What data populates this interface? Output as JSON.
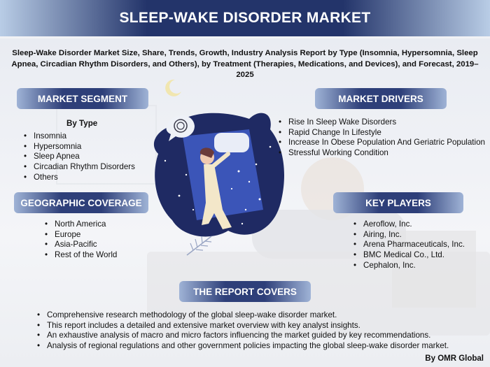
{
  "header": {
    "title": "SLEEP-WAKE DISORDER MARKET"
  },
  "subtitle": "Sleep-Wake Disorder Market Size, Share, Trends, Growth, Industry Analysis Report by Type (Insomnia, Hypersomnia, Sleep Apnea, Circadian Rhythm Disorders, and Others), by Treatment (Therapies, Medications, and Devices), and Forecast, 2019–2025",
  "market_segment": {
    "heading": "MARKET SEGMENT",
    "subheading": "By Type",
    "items": [
      "Insomnia",
      "Hypersomnia",
      "Sleep Apnea",
      "Circadian Rhythm Disorders",
      "Others"
    ]
  },
  "market_drivers": {
    "heading": "MARKET DRIVERS",
    "items": [
      "Rise In Sleep Wake Disorders",
      "Rapid Change In Lifestyle",
      "Increase In Obese Population And Geriatric Population",
      "Stressful Working Condition"
    ]
  },
  "geographic_coverage": {
    "heading": "GEOGRAPHIC COVERAGE",
    "items": [
      "North America",
      "Europe",
      "Asia-Pacific",
      "Rest of the World"
    ]
  },
  "key_players": {
    "heading": "KEY PLAYERS",
    "items": [
      "Aeroflow, Inc.",
      "Airing, Inc.",
      "Arena Pharmaceuticals, Inc.",
      "BMC Medical Co., Ltd.",
      "Cephalon, Inc."
    ]
  },
  "report_covers": {
    "heading": "THE REPORT COVERS",
    "items": [
      "Comprehensive research methodology of the global sleep-wake disorder market.",
      "This report includes a detailed and extensive market overview with key analyst insights.",
      "An exhaustive analysis of macro and micro factors influencing the market guided by key recommendations.",
      "Analysis of regional regulations and other government policies impacting the global sleep-wake disorder market."
    ]
  },
  "footer": {
    "credit": "By OMR Global"
  },
  "icons": [
    "moon-icon",
    "sleeping-person-illustration",
    "leaf-icon"
  ],
  "colors": {
    "banner": "#23346a",
    "pill": "#2e3f79",
    "text": "#111111"
  }
}
